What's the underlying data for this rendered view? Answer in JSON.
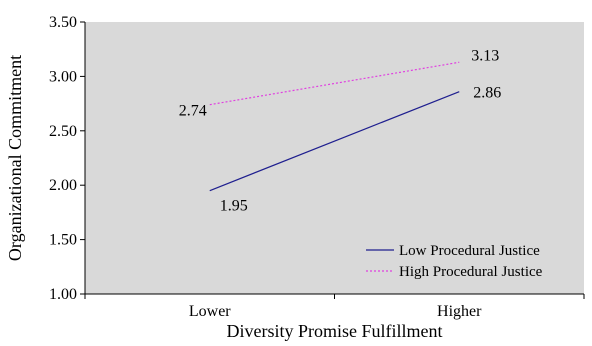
{
  "chart_data": {
    "type": "line",
    "xlabel": "Diversity Promise Fulfillment",
    "ylabel": "Organizational Commitment",
    "categories": [
      "Lower",
      "Higher"
    ],
    "ylim": [
      1.0,
      3.5
    ],
    "yticks": [
      "1.00",
      "1.50",
      "2.00",
      "2.50",
      "3.00",
      "3.50"
    ],
    "grid": false,
    "plot_background": "#d9d9d9",
    "legend_position": "bottom-right",
    "series": [
      {
        "name": "Low Procedural Justice",
        "values": [
          1.95,
          2.86
        ],
        "data_labels": [
          "1.95",
          "2.86"
        ],
        "color": "#1f1f8f",
        "line_style": "solid"
      },
      {
        "name": "High Procedural Justice",
        "values": [
          2.74,
          3.13
        ],
        "data_labels": [
          "2.74",
          "3.13"
        ],
        "color": "#e040e0",
        "line_style": "dotted"
      }
    ]
  }
}
